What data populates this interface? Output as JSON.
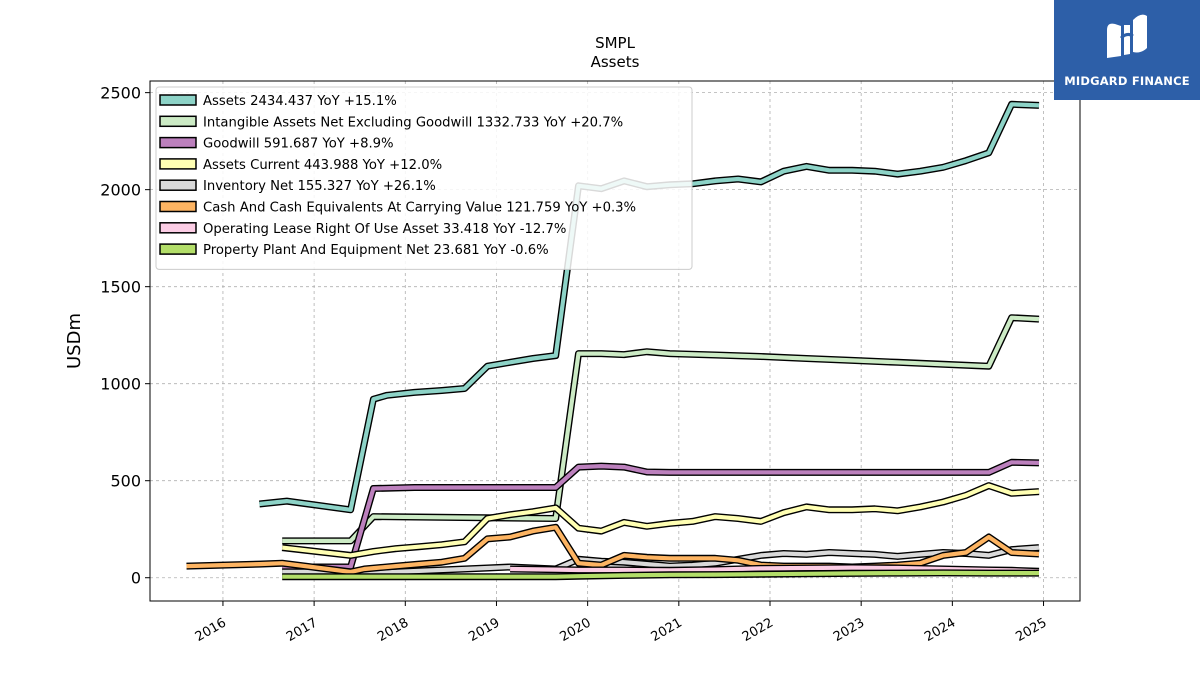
{
  "chart_data": {
    "type": "line",
    "title": "SMPL",
    "subtitle": "Assets",
    "xlabel": "",
    "ylabel": "USDm",
    "xlim": [
      2015.2,
      2025.4
    ],
    "ylim": [
      -120,
      2560
    ],
    "x_ticks": [
      "2016",
      "2017",
      "2018",
      "2019",
      "2020",
      "2021",
      "2022",
      "2023",
      "2024",
      "2025"
    ],
    "y_ticks": [
      "0",
      "500",
      "1000",
      "1500",
      "2000",
      "2500"
    ],
    "grid": true,
    "legend_position": "top-left",
    "series": [
      {
        "name": "Assets",
        "legend": "Assets  2434.437 YoY +15.1%",
        "color": "#8dd3c7",
        "x": [
          2016.4,
          2016.7,
          2017.4,
          2017.65,
          2017.8,
          2018.1,
          2018.4,
          2018.65,
          2018.9,
          2019.15,
          2019.4,
          2019.65,
          2019.9,
          2020.15,
          2020.4,
          2020.65,
          2020.9,
          2021.15,
          2021.4,
          2021.65,
          2021.9,
          2022.15,
          2022.4,
          2022.65,
          2022.9,
          2023.15,
          2023.4,
          2023.65,
          2023.9,
          2024.15,
          2024.4,
          2024.65,
          2024.95
        ],
        "y": [
          380,
          395,
          350,
          920,
          940,
          955,
          965,
          975,
          1090,
          1110,
          1130,
          1145,
          2020,
          2005,
          2045,
          2015,
          2025,
          2030,
          2045,
          2055,
          2040,
          2095,
          2120,
          2100,
          2100,
          2095,
          2080,
          2095,
          2115,
          2150,
          2190,
          2440,
          2434
        ]
      },
      {
        "name": "Intangible Assets Net Excluding Goodwill",
        "legend": "Intangible Assets Net Excluding Goodwill  1332.733 YoY +20.7%",
        "color": "#ccebc5",
        "x": [
          2016.65,
          2017.4,
          2017.65,
          2019.65,
          2019.9,
          2020.15,
          2020.4,
          2020.65,
          2020.9,
          2021.4,
          2021.9,
          2022.4,
          2022.9,
          2023.4,
          2023.9,
          2024.4,
          2024.65,
          2024.95
        ],
        "y": [
          190,
          190,
          315,
          305,
          1155,
          1155,
          1150,
          1165,
          1155,
          1148,
          1140,
          1130,
          1120,
          1110,
          1100,
          1090,
          1340,
          1333
        ]
      },
      {
        "name": "Goodwill",
        "legend": "Goodwill  591.687 YoY +8.9%",
        "color": "#bc80bd",
        "x": [
          2016.65,
          2017.4,
          2017.65,
          2018.1,
          2018.4,
          2018.65,
          2018.9,
          2019.4,
          2019.65,
          2019.9,
          2020.15,
          2020.4,
          2020.65,
          2020.9,
          2021.4,
          2021.9,
          2022.4,
          2022.9,
          2023.4,
          2023.9,
          2024.4,
          2024.65,
          2024.95
        ],
        "y": [
          55,
          55,
          460,
          465,
          465,
          465,
          465,
          465,
          465,
          570,
          575,
          570,
          545,
          543,
          543,
          543,
          543,
          543,
          543,
          543,
          543,
          595,
          592
        ]
      },
      {
        "name": "Assets Current",
        "legend": "Assets Current  443.988 YoY +12.0%",
        "color": "#ffffb3",
        "x": [
          2016.65,
          2017.4,
          2017.65,
          2017.9,
          2018.15,
          2018.4,
          2018.65,
          2018.9,
          2019.15,
          2019.4,
          2019.65,
          2019.9,
          2020.15,
          2020.4,
          2020.65,
          2020.9,
          2021.15,
          2021.4,
          2021.65,
          2021.9,
          2022.15,
          2022.4,
          2022.65,
          2022.9,
          2023.15,
          2023.4,
          2023.65,
          2023.9,
          2024.15,
          2024.4,
          2024.65,
          2024.95
        ],
        "y": [
          155,
          115,
          135,
          150,
          160,
          170,
          185,
          305,
          325,
          340,
          360,
          255,
          240,
          285,
          265,
          280,
          290,
          315,
          305,
          290,
          335,
          365,
          350,
          350,
          355,
          345,
          365,
          390,
          425,
          475,
          435,
          444
        ]
      },
      {
        "name": "Inventory Net",
        "legend": "Inventory Net  155.327 YoY +26.1%",
        "color": "#d9d9d9",
        "x": [
          2016.65,
          2017.4,
          2017.65,
          2018.15,
          2018.65,
          2018.9,
          2019.15,
          2019.65,
          2019.9,
          2020.15,
          2020.4,
          2020.65,
          2020.9,
          2021.15,
          2021.4,
          2021.65,
          2021.9,
          2022.15,
          2022.4,
          2022.65,
          2022.9,
          2023.15,
          2023.4,
          2023.65,
          2023.9,
          2024.15,
          2024.4,
          2024.65,
          2024.95
        ],
        "y": [
          30,
          30,
          25,
          35,
          45,
          50,
          55,
          45,
          95,
          85,
          80,
          70,
          60,
          65,
          75,
          95,
          115,
          125,
          120,
          130,
          125,
          120,
          110,
          120,
          130,
          125,
          115,
          145,
          155
        ]
      },
      {
        "name": "Cash And Cash Equivalents At Carrying Value",
        "legend": "Cash And Cash Equivalents At Carrying Value  121.759 YoY +0.3%",
        "color": "#fdb462",
        "x": [
          2015.6,
          2016.4,
          2016.65,
          2017.15,
          2017.4,
          2017.55,
          2017.9,
          2018.15,
          2018.4,
          2018.65,
          2018.9,
          2019.15,
          2019.4,
          2019.65,
          2019.9,
          2020.15,
          2020.4,
          2020.65,
          2020.9,
          2021.4,
          2021.65,
          2021.9,
          2022.15,
          2022.4,
          2022.65,
          2022.9,
          2023.15,
          2023.4,
          2023.65,
          2023.9,
          2024.15,
          2024.4,
          2024.65,
          2024.95
        ],
        "y": [
          60,
          70,
          75,
          45,
          30,
          45,
          60,
          70,
          80,
          100,
          200,
          210,
          240,
          260,
          75,
          65,
          115,
          105,
          100,
          100,
          90,
          65,
          60,
          60,
          60,
          55,
          60,
          65,
          75,
          115,
          130,
          210,
          130,
          122
        ]
      },
      {
        "name": "Operating Lease Right Of Use Asset",
        "legend": "Operating Lease Right Of Use Asset  33.418 YoY -12.7%",
        "color": "#fccde5",
        "x": [
          2019.15,
          2019.65,
          2019.9,
          2020.4,
          2020.9,
          2021.4,
          2021.9,
          2022.4,
          2022.9,
          2023.4,
          2023.9,
          2024.4,
          2024.65,
          2024.95
        ],
        "y": [
          45,
          42,
          40,
          40,
          38,
          42,
          48,
          50,
          52,
          50,
          45,
          40,
          38,
          33
        ]
      },
      {
        "name": "Property Plant And Equipment Net",
        "legend": "Property Plant And Equipment Net  23.681 YoY -0.6%",
        "color": "#b3de69",
        "x": [
          2016.65,
          2017.4,
          2018.4,
          2019.4,
          2019.65,
          2019.9,
          2020.4,
          2020.9,
          2021.4,
          2021.9,
          2022.4,
          2022.9,
          2023.4,
          2023.9,
          2024.4,
          2024.65,
          2024.95
        ],
        "y": [
          5,
          5,
          5,
          5,
          5,
          8,
          12,
          15,
          16,
          18,
          20,
          22,
          24,
          25,
          24,
          24,
          24
        ]
      }
    ]
  },
  "logo": {
    "text": "MIDGARD FINANCE",
    "icon": "midgard-logo-icon",
    "bg_color": "#2d5fa8"
  }
}
